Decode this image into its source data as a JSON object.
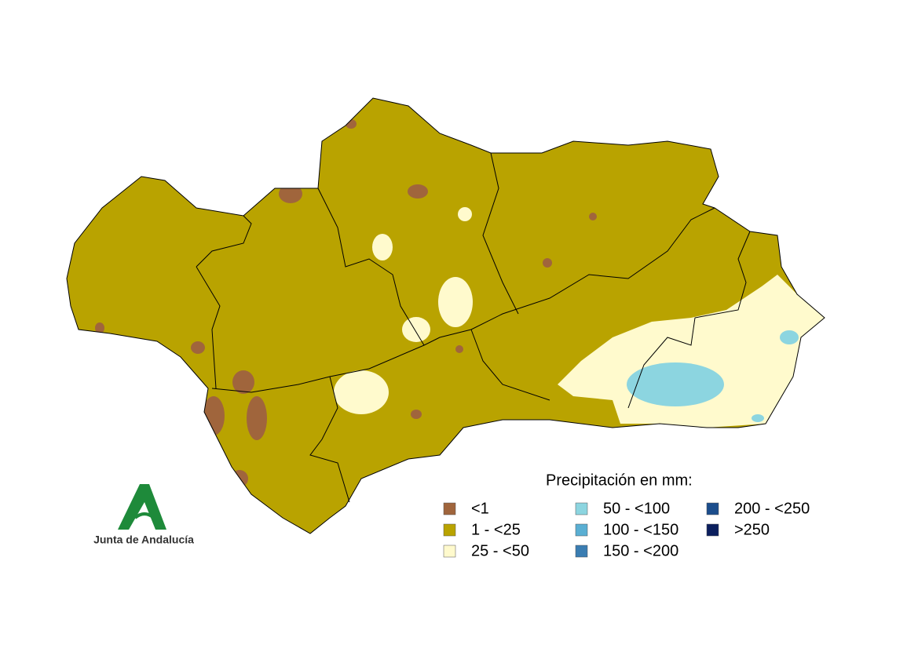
{
  "legend": {
    "title": "Precipitación en mm:",
    "items": [
      {
        "label": "<1",
        "color": "#a0653c"
      },
      {
        "label": "1 - <25",
        "color": "#b9a300"
      },
      {
        "label": "25 - <50",
        "color": "#fffacd"
      },
      {
        "label": "50 - <100",
        "color": "#8cd5e0"
      },
      {
        "label": "100 - <150",
        "color": "#5aafd3"
      },
      {
        "label": "150 - <200",
        "color": "#3a7db2"
      },
      {
        "label": "200 - <250",
        "color": "#1b4d8c"
      },
      {
        "label": ">250",
        "color": "#0b1f5e"
      }
    ]
  },
  "logo": {
    "text": "Junta de Andalucía"
  }
}
